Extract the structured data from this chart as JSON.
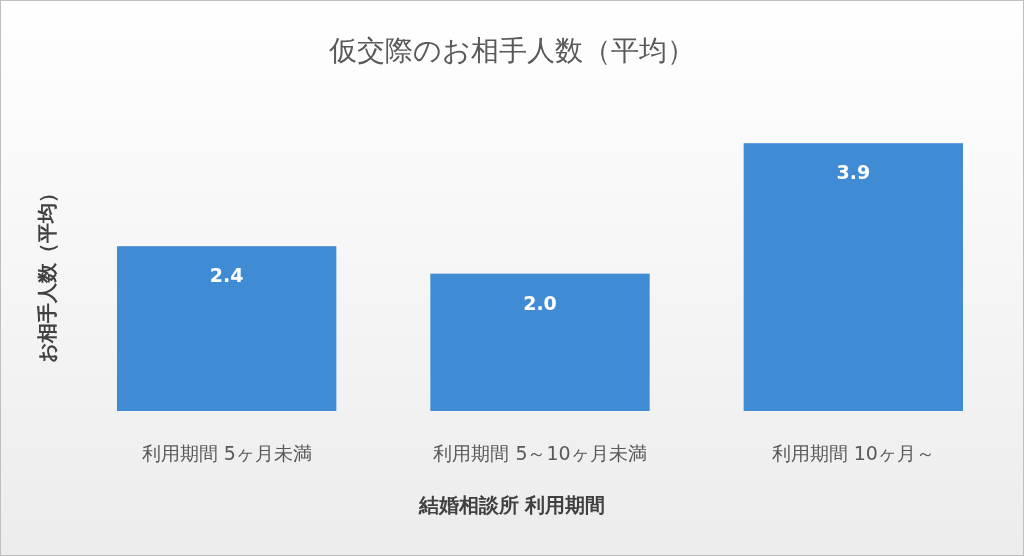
{
  "chart_data": {
    "type": "bar",
    "title": "仮交際のお相手人数（平均）",
    "xlabel": "結婚相談所 利用期間",
    "ylabel": "お相手人数（平均）",
    "categories": [
      "利用期間 5ヶ月未満",
      "利用期間 5～10ヶ月未満",
      "利用期間 10ヶ月～"
    ],
    "values": [
      2.4,
      2.0,
      3.9
    ],
    "value_labels": [
      "2.4",
      "2.0",
      "3.9"
    ],
    "color": "#3f8bd4"
  }
}
